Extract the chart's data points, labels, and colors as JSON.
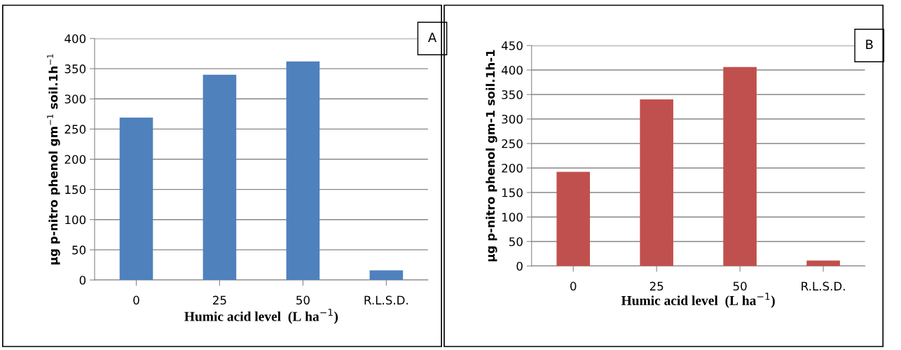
{
  "chart_data": [
    {
      "type": "bar",
      "categories": [
        "0",
        "25",
        "50",
        "R.L.S.D."
      ],
      "values": [
        269,
        340,
        362,
        16
      ],
      "color": "#4f81bd",
      "ylim": [
        0,
        400
      ],
      "yticks": [
        0,
        50,
        100,
        150,
        200,
        250,
        300,
        350,
        400
      ],
      "grid": "y",
      "xlabel": "Humic acid level  (L ha$^{−1}$)",
      "ylabel": "µg p-nitro phenol gm$^{−1}$ soil.1h$^{−1}$",
      "annotations": [
        "A"
      ]
    },
    {
      "type": "bar",
      "categories": [
        "0",
        "25",
        "50",
        "R.L.S.D."
      ],
      "values": [
        192,
        340,
        406,
        11
      ],
      "color": "#c0504d",
      "ylim": [
        0,
        450
      ],
      "yticks": [
        0,
        50,
        100,
        150,
        200,
        250,
        300,
        350,
        400,
        450
      ],
      "grid": "y",
      "xlabel": "Humic acid level  (L ha$^{−1}$)",
      "ylabel": "µg p-nitro phenol gm-1 soil.1h-1",
      "annotations": [
        "B"
      ]
    }
  ]
}
